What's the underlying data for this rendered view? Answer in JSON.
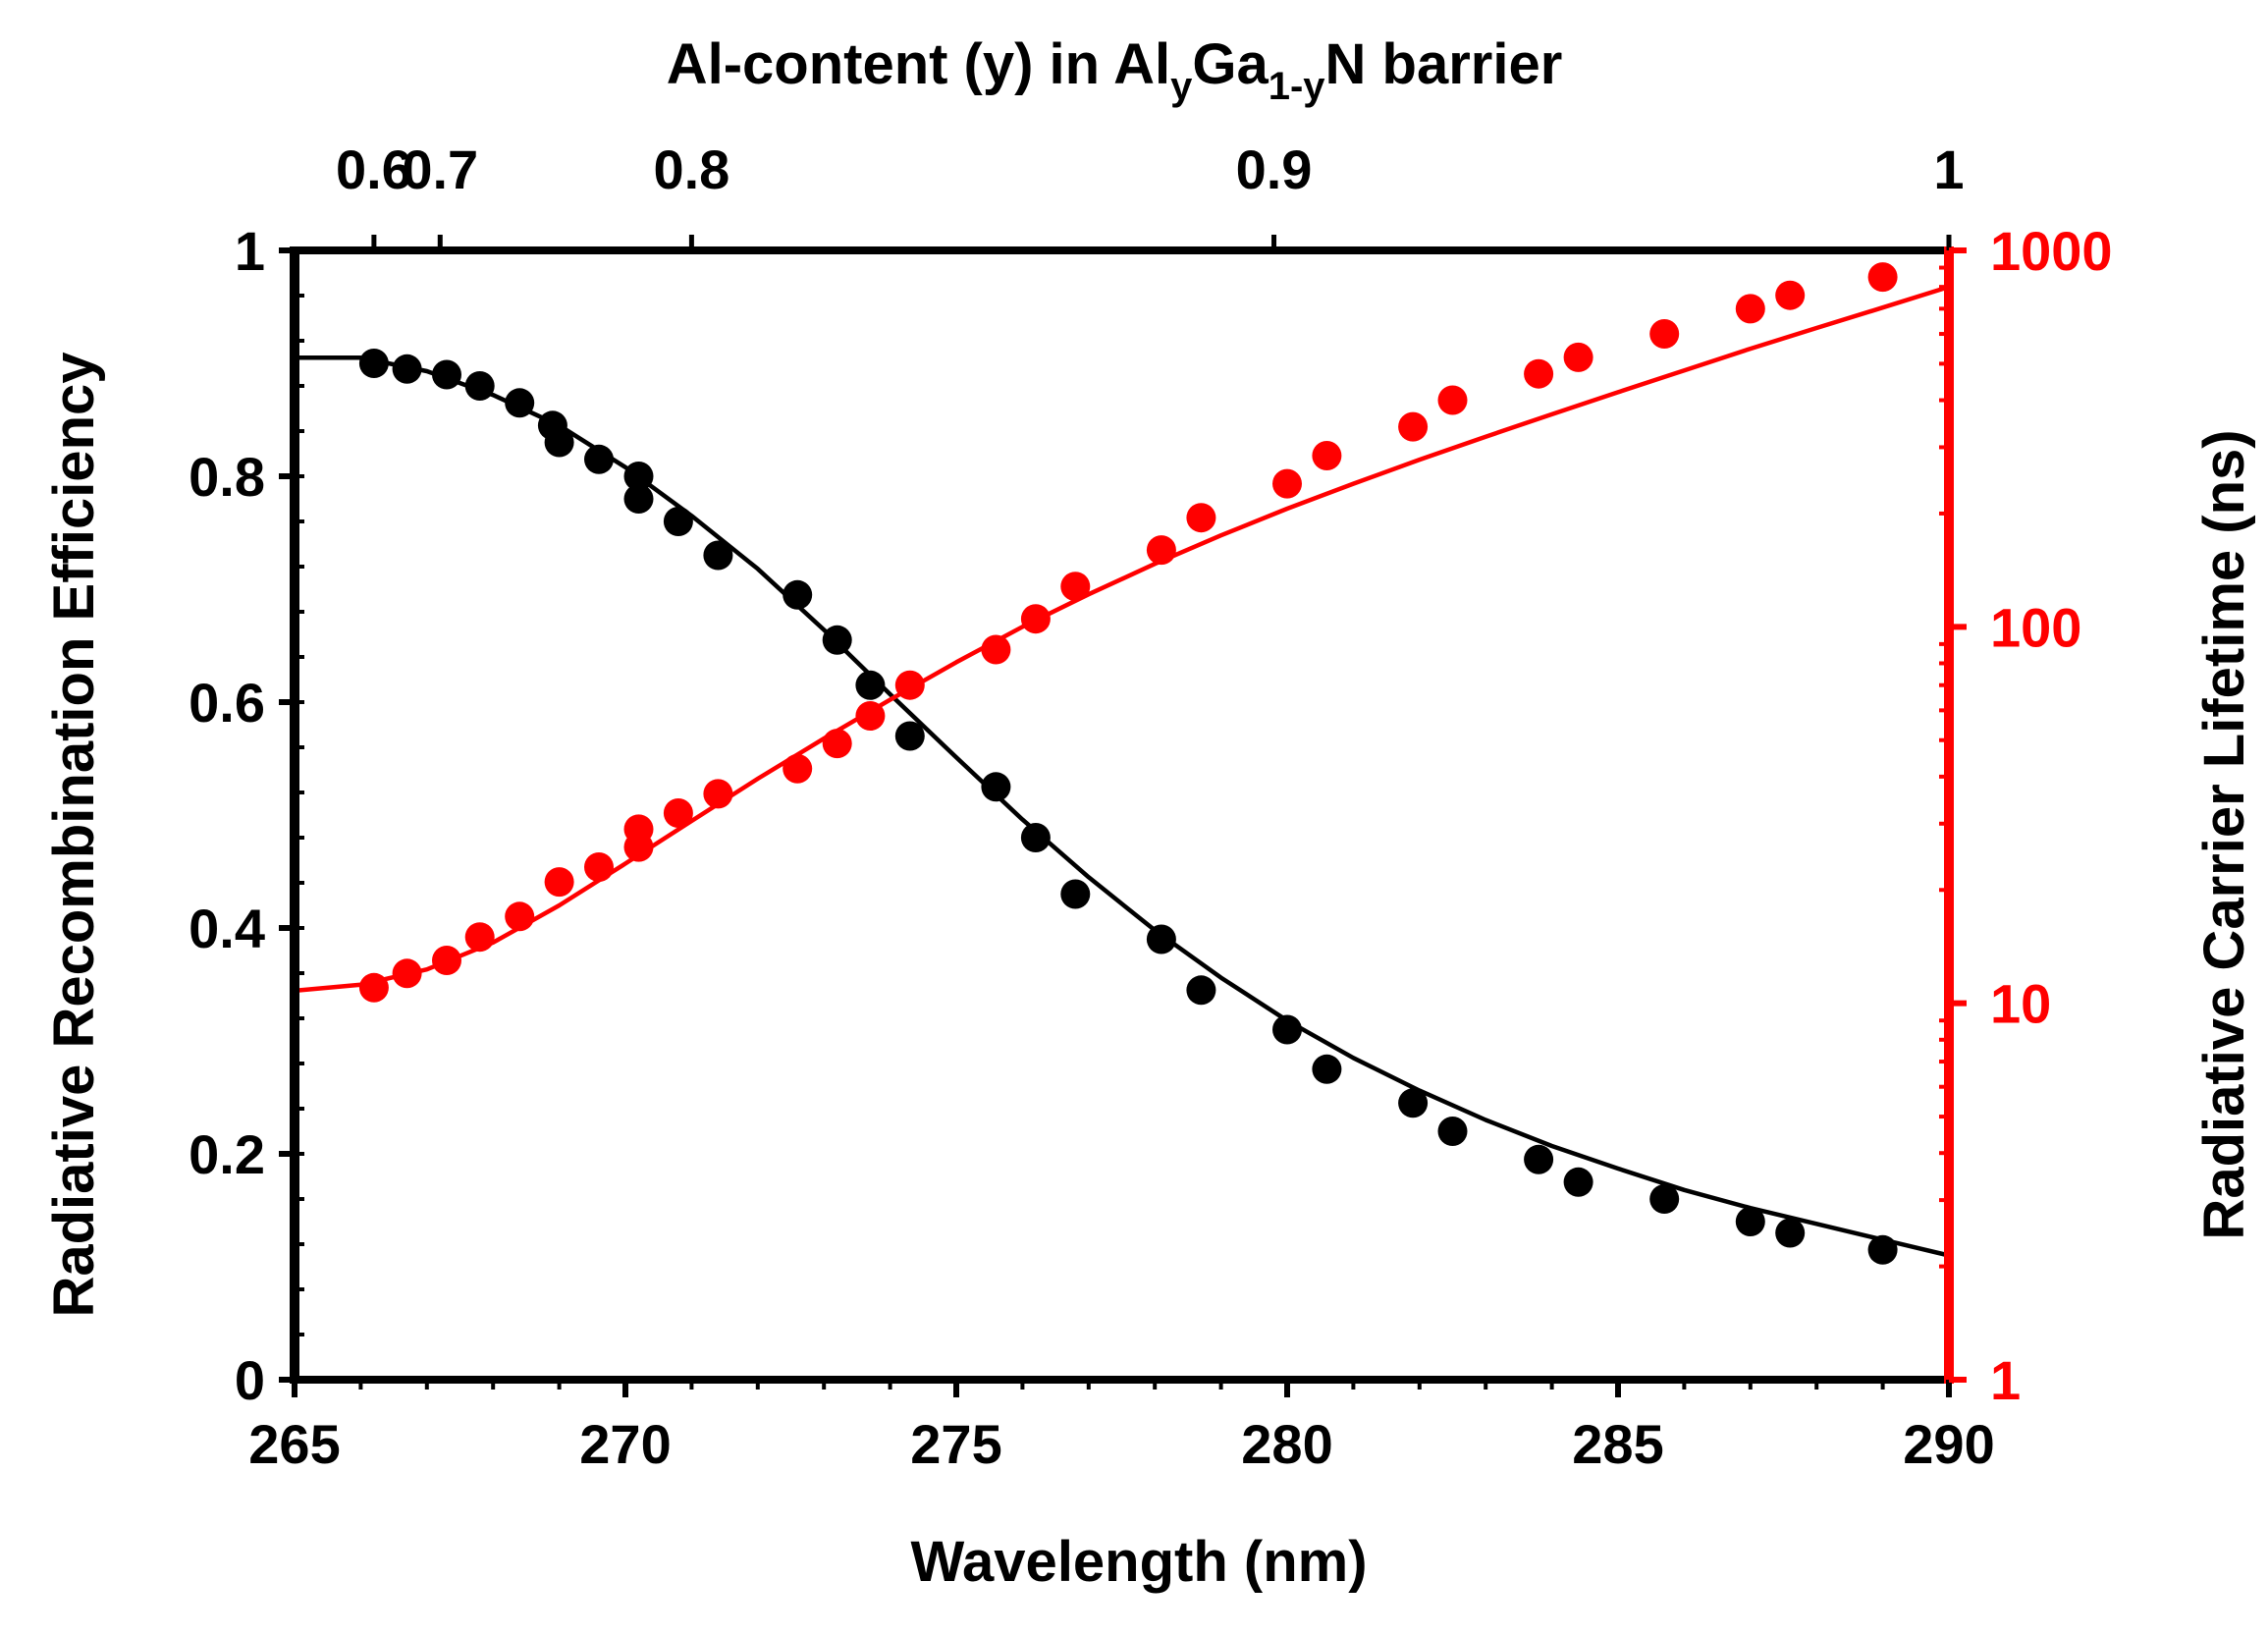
{
  "chart_data": {
    "type": "scatter",
    "title": "",
    "xlabel": "Wavelength (nm)",
    "xlim": [
      265,
      290
    ],
    "x_ticks": [
      "265",
      "270",
      "275",
      "280",
      "285",
      "290"
    ],
    "top_axis": {
      "label_prefix": "Al-content (y) in Al",
      "label_sub_y": "y",
      "label_mid": "Ga",
      "label_sub_1y": "1-y",
      "label_suffix": "N barrier",
      "ticks": [
        {
          "label": "0.6",
          "wavelength": 266.2
        },
        {
          "label": "0.7",
          "wavelength": 267.2
        },
        {
          "label": "0.8",
          "wavelength": 271.0
        },
        {
          "label": "0.9",
          "wavelength": 279.8
        },
        {
          "label": "1",
          "wavelength": 290.0
        }
      ]
    },
    "y_left": {
      "label": "Radiative Recombination Efficiency",
      "lim": [
        0,
        1
      ],
      "ticks": [
        "0",
        "0.2",
        "0.4",
        "0.6",
        "0.8",
        "1"
      ],
      "color": "#000000"
    },
    "y_right": {
      "label": "Radiative Carrier Lifetime (ns)",
      "scale": "log",
      "lim": [
        1,
        1000
      ],
      "ticks": [
        "1",
        "10",
        "100",
        "1000"
      ],
      "color": "#ff0000"
    },
    "series": [
      {
        "name": "Radiative Recombination Efficiency",
        "axis": "left",
        "color": "#000000",
        "x": [
          266.2,
          266.7,
          267.3,
          267.8,
          268.4,
          268.9,
          269.0,
          269.6,
          270.2,
          270.2,
          270.8,
          271.4,
          272.6,
          273.2,
          273.7,
          274.3,
          275.6,
          276.2,
          276.8,
          278.1,
          278.7,
          280.0,
          280.6,
          281.9,
          282.5,
          283.8,
          284.4,
          285.7,
          287.0,
          287.6,
          289.0
        ],
        "values": [
          0.9,
          0.895,
          0.89,
          0.88,
          0.865,
          0.845,
          0.83,
          0.815,
          0.8,
          0.78,
          0.76,
          0.73,
          0.695,
          0.655,
          0.615,
          0.57,
          0.525,
          0.48,
          0.43,
          0.39,
          0.345,
          0.31,
          0.275,
          0.245,
          0.22,
          0.195,
          0.175,
          0.16,
          0.14,
          0.13,
          0.115
        ]
      },
      {
        "name": "Radiative Carrier Lifetime (ns)",
        "axis": "right",
        "color": "#ff0000",
        "x": [
          266.2,
          266.7,
          267.3,
          267.8,
          268.4,
          269.0,
          269.6,
          270.2,
          270.2,
          270.8,
          271.4,
          272.6,
          273.2,
          273.7,
          274.3,
          275.6,
          276.2,
          276.8,
          278.1,
          278.7,
          280.0,
          280.6,
          281.9,
          282.5,
          283.8,
          284.4,
          285.7,
          287.0,
          287.6,
          289.0
        ],
        "values": [
          11,
          12,
          13,
          15,
          17,
          21,
          23,
          26,
          29,
          32,
          36,
          42,
          49,
          58,
          70,
          87,
          105,
          128,
          160,
          195,
          240,
          285,
          340,
          400,
          470,
          520,
          600,
          700,
          760,
          850
        ]
      }
    ],
    "fits": [
      {
        "name": "efficiency-fit",
        "axis": "left",
        "color": "#000000",
        "x": [
          265,
          266,
          267,
          268,
          269,
          270,
          271,
          272,
          273,
          274,
          275,
          276,
          277,
          278,
          279,
          280,
          281,
          282,
          283,
          284,
          285,
          286,
          287,
          288,
          289,
          290
        ],
        "values": [
          0.905,
          0.905,
          0.893,
          0.872,
          0.845,
          0.808,
          0.765,
          0.718,
          0.664,
          0.607,
          0.551,
          0.496,
          0.445,
          0.398,
          0.356,
          0.318,
          0.285,
          0.256,
          0.23,
          0.207,
          0.187,
          0.168,
          0.152,
          0.138,
          0.124,
          0.11
        ]
      },
      {
        "name": "lifetime-fit",
        "axis": "right",
        "color": "#ff0000",
        "x": [
          265,
          266,
          267,
          268,
          269,
          270,
          271,
          272,
          273,
          274,
          275,
          276,
          277,
          278,
          279,
          280,
          281,
          282,
          283,
          284,
          285,
          286,
          287,
          288,
          289,
          290
        ],
        "values": [
          10.8,
          11.2,
          12.3,
          14.5,
          18.2,
          23.5,
          30.5,
          39.5,
          50.5,
          64.0,
          80.5,
          100,
          122,
          147,
          175,
          206,
          240,
          278,
          320,
          367,
          420,
          480,
          548,
          622,
          705,
          800
        ]
      }
    ]
  }
}
